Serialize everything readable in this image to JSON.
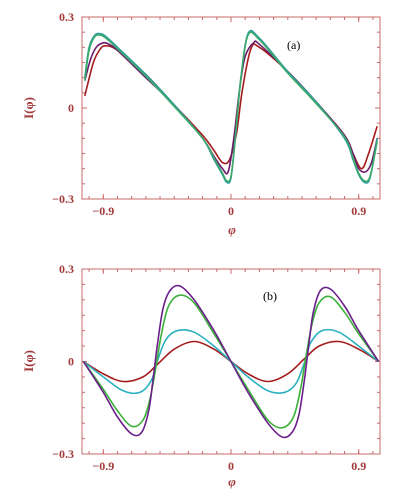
{
  "colors": {
    "axis": "#c96b6b",
    "label": "#a33a3a"
  },
  "chart_data": [
    {
      "type": "line",
      "panel_label": "(a)",
      "xlabel": "φ",
      "ylabel": "I(φ)",
      "xlim": [
        -1.05,
        1.05
      ],
      "ylim": [
        -0.3,
        0.3
      ],
      "xticks": [
        -0.9,
        0,
        0.9
      ],
      "xtick_labels": [
        "−0.9",
        "0",
        "0.9"
      ],
      "yticks": [
        -0.3,
        0,
        0.3
      ],
      "ytick_labels": [
        "−0.3",
        "0",
        "0.3"
      ],
      "grid": false,
      "series": [
        {
          "color": "#a51c1c",
          "x": [
            -1.03,
            -0.97,
            -0.92,
            -0.88,
            -0.8,
            -0.6,
            -0.4,
            -0.2,
            -0.12,
            -0.06,
            -0.01,
            0.04,
            0.08,
            0.14,
            0.2,
            0.4,
            0.6,
            0.8,
            0.86,
            0.92,
            0.97,
            1.03
          ],
          "y": [
            0.04,
            0.15,
            0.195,
            0.205,
            0.19,
            0.11,
            0.01,
            -0.09,
            -0.14,
            -0.18,
            -0.17,
            -0.08,
            0.06,
            0.195,
            0.2,
            0.12,
            0.02,
            -0.09,
            -0.15,
            -0.2,
            -0.15,
            -0.06
          ]
        },
        {
          "color": "#6a1b6a",
          "x": [
            -1.03,
            -0.99,
            -0.95,
            -0.9,
            -0.86,
            -0.8,
            -0.6,
            -0.4,
            -0.2,
            -0.12,
            -0.06,
            -0.02,
            0.02,
            0.06,
            0.1,
            0.16,
            0.2,
            0.4,
            0.6,
            0.8,
            0.86,
            0.9,
            0.95,
            0.99,
            1.03
          ],
          "y": [
            0.09,
            0.16,
            0.2,
            0.215,
            0.21,
            0.19,
            0.1,
            0.01,
            -0.1,
            -0.16,
            -0.2,
            -0.21,
            -0.1,
            0.06,
            0.17,
            0.215,
            0.21,
            0.12,
            0.02,
            -0.09,
            -0.15,
            -0.2,
            -0.21,
            -0.18,
            -0.1
          ]
        },
        {
          "color": "#2a9d9d",
          "x": [
            -1.03,
            -1.0,
            -0.96,
            -0.92,
            -0.88,
            -0.8,
            -0.6,
            -0.4,
            -0.2,
            -0.12,
            -0.06,
            -0.03,
            0.0,
            0.03,
            0.07,
            0.12,
            0.2,
            0.4,
            0.6,
            0.8,
            0.86,
            0.9,
            0.94,
            0.98,
            1.03
          ],
          "y": [
            0.1,
            0.2,
            0.24,
            0.245,
            0.235,
            0.2,
            0.11,
            0.01,
            -0.1,
            -0.17,
            -0.22,
            -0.245,
            -0.23,
            -0.1,
            0.1,
            0.245,
            0.23,
            0.12,
            0.02,
            -0.1,
            -0.17,
            -0.22,
            -0.245,
            -0.23,
            -0.1
          ]
        },
        {
          "color": "#3daa6a",
          "x": [
            -1.03,
            -1.0,
            -0.96,
            -0.92,
            -0.88,
            -0.8,
            -0.6,
            -0.4,
            -0.2,
            -0.12,
            -0.06,
            -0.03,
            0.0,
            0.03,
            0.07,
            0.12,
            0.2,
            0.4,
            0.6,
            0.8,
            0.86,
            0.9,
            0.94,
            0.98,
            1.03
          ],
          "y": [
            0.09,
            0.19,
            0.235,
            0.24,
            0.23,
            0.195,
            0.105,
            0.005,
            -0.1,
            -0.165,
            -0.215,
            -0.24,
            -0.225,
            -0.1,
            0.1,
            0.24,
            0.225,
            0.115,
            0.015,
            -0.095,
            -0.165,
            -0.215,
            -0.24,
            -0.225,
            -0.11
          ]
        }
      ]
    },
    {
      "type": "line",
      "panel_label": "(b)",
      "xlabel": "φ",
      "ylabel": "I(φ)",
      "xlim": [
        -1.05,
        1.05
      ],
      "ylim": [
        -0.3,
        0.3
      ],
      "xticks": [
        -0.9,
        0,
        0.9
      ],
      "xtick_labels": [
        "−0.9",
        "0",
        "0.9"
      ],
      "yticks": [
        -0.3,
        0,
        0.3
      ],
      "ytick_labels": [
        "−0.3",
        "0",
        "0.3"
      ],
      "grid": false,
      "series": [
        {
          "color": "#a51c1c",
          "x": [
            -1.04,
            -0.9,
            -0.76,
            -0.62,
            -0.52,
            -0.4,
            -0.26,
            -0.12,
            0.0,
            0.12,
            0.26,
            0.4,
            0.52,
            0.62,
            0.76,
            0.9,
            1.04
          ],
          "y": [
            0.0,
            -0.04,
            -0.065,
            -0.05,
            -0.01,
            0.04,
            0.065,
            0.04,
            0.0,
            -0.04,
            -0.065,
            -0.04,
            0.01,
            0.05,
            0.065,
            0.04,
            0.0
          ]
        },
        {
          "color": "#2ab0c0",
          "x": [
            -1.04,
            -0.9,
            -0.76,
            -0.64,
            -0.56,
            -0.52,
            -0.46,
            -0.38,
            -0.26,
            -0.12,
            0.0,
            0.12,
            0.26,
            0.38,
            0.46,
            0.52,
            0.56,
            0.64,
            0.76,
            0.9,
            1.04
          ],
          "y": [
            0.0,
            -0.05,
            -0.095,
            -0.1,
            -0.06,
            0.0,
            0.07,
            0.1,
            0.095,
            0.05,
            0.0,
            -0.05,
            -0.095,
            -0.1,
            -0.07,
            0.0,
            0.06,
            0.1,
            0.095,
            0.05,
            0.0
          ]
        },
        {
          "color": "#3bb03b",
          "x": [
            -1.04,
            -0.9,
            -0.8,
            -0.7,
            -0.62,
            -0.57,
            -0.53,
            -0.49,
            -0.44,
            -0.36,
            -0.26,
            -0.12,
            0.0,
            0.12,
            0.26,
            0.36,
            0.44,
            0.49,
            0.53,
            0.57,
            0.62,
            0.7,
            0.8,
            0.9,
            1.04
          ],
          "y": [
            0.0,
            -0.09,
            -0.16,
            -0.21,
            -0.19,
            -0.12,
            -0.02,
            0.09,
            0.18,
            0.215,
            0.19,
            0.09,
            0.0,
            -0.09,
            -0.19,
            -0.215,
            -0.18,
            -0.09,
            0.02,
            0.12,
            0.19,
            0.21,
            0.16,
            0.09,
            0.0
          ]
        },
        {
          "color": "#6a1f8a",
          "x": [
            -1.04,
            -0.9,
            -0.8,
            -0.7,
            -0.63,
            -0.58,
            -0.55,
            -0.52,
            -0.48,
            -0.43,
            -0.36,
            -0.26,
            -0.12,
            0.0,
            0.12,
            0.26,
            0.36,
            0.43,
            0.48,
            0.52,
            0.55,
            0.58,
            0.63,
            0.7,
            0.8,
            0.9,
            1.04
          ],
          "y": [
            0.0,
            -0.1,
            -0.18,
            -0.235,
            -0.23,
            -0.16,
            -0.06,
            0.05,
            0.17,
            0.23,
            0.245,
            0.2,
            0.1,
            0.0,
            -0.1,
            -0.2,
            -0.245,
            -0.23,
            -0.17,
            -0.05,
            0.06,
            0.16,
            0.23,
            0.235,
            0.18,
            0.1,
            0.0
          ]
        }
      ]
    }
  ]
}
